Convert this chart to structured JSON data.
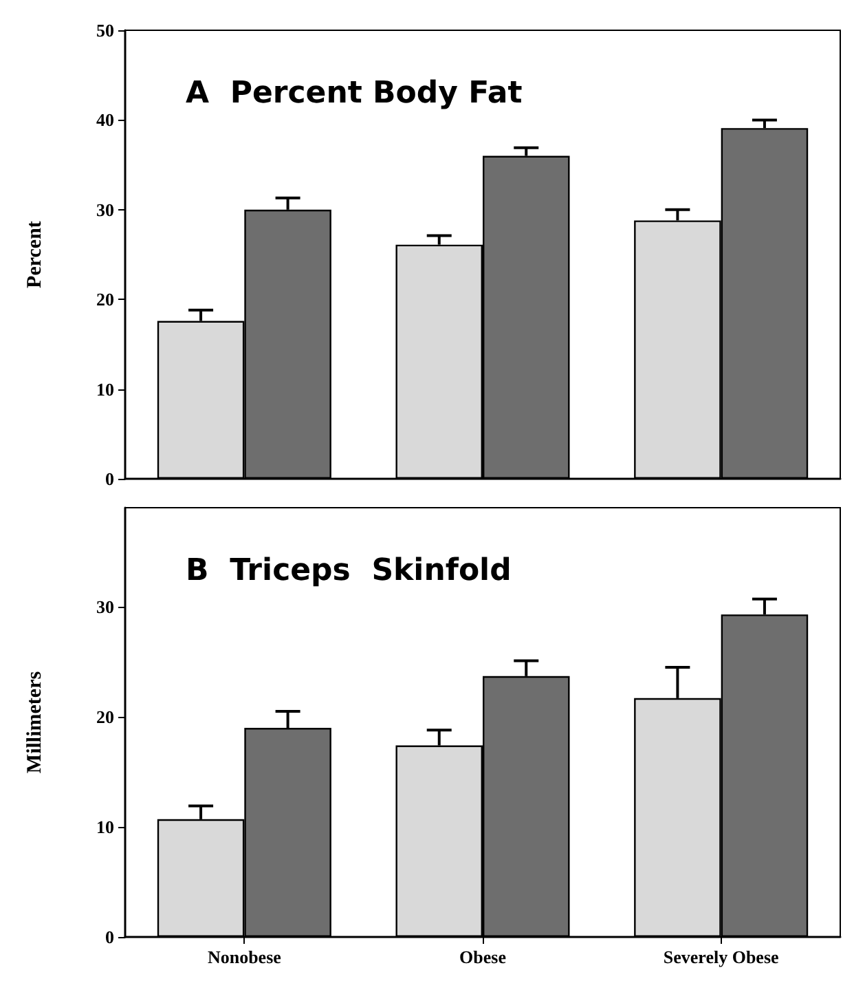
{
  "chart_data": [
    {
      "type": "bar",
      "title": "A  Percent Body Fat",
      "ylabel": "Percent",
      "categories": [
        null,
        null,
        null
      ],
      "tick_labels": "y",
      "ylim": [
        0,
        50
      ],
      "yticks": [
        0,
        10,
        20,
        30,
        40,
        50
      ],
      "series": [
        {
          "color": "#d9d9d9",
          "values": [
            17.6,
            26.1,
            28.8
          ],
          "errors": [
            [
              17.6,
              18.8
            ],
            [
              26.1,
              27.1
            ],
            [
              28.8,
              30.0
            ]
          ]
        },
        {
          "color": "#6e6e6e",
          "values": [
            30.0,
            36.0,
            39.1
          ],
          "errors": [
            [
              30.0,
              31.3
            ],
            [
              36.0,
              36.9
            ],
            [
              39.1,
              40.0
            ]
          ]
        }
      ]
    },
    {
      "type": "bar",
      "title": "B  Triceps  Skinfold",
      "ylabel": "Millimeters",
      "categories": [
        "Nonobese",
        "Obese",
        "Severely Obese"
      ],
      "ylim": [
        0,
        39
      ],
      "yticks": [
        0,
        10,
        20,
        30
      ],
      "series": [
        {
          "color": "#d9d9d9",
          "values": [
            10.7,
            17.4,
            21.7
          ],
          "errors": [
            [
              10.7,
              11.9
            ],
            [
              17.4,
              18.8
            ],
            [
              21.7,
              24.5
            ]
          ]
        },
        {
          "color": "#6e6e6e",
          "values": [
            19.0,
            23.7,
            29.3
          ],
          "errors": [
            [
              19.0,
              20.5
            ],
            [
              23.7,
              25.1
            ],
            [
              29.3,
              30.7
            ]
          ]
        }
      ]
    }
  ]
}
